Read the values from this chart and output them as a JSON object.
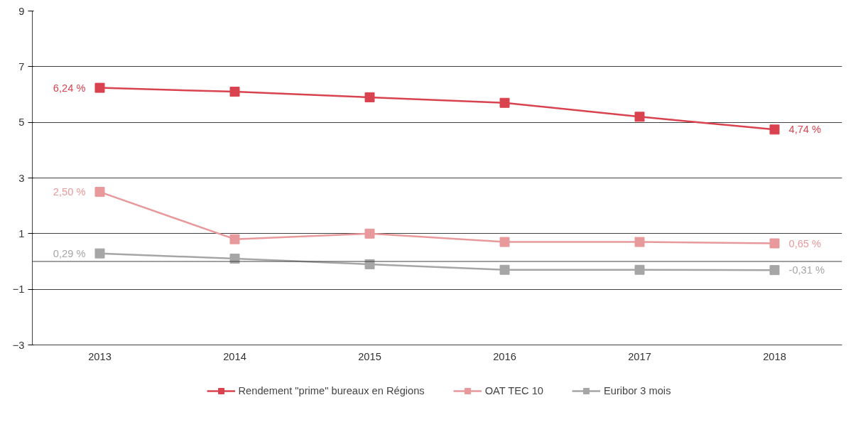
{
  "chart_data": {
    "type": "line",
    "categories": [
      "2013",
      "2014",
      "2015",
      "2016",
      "2017",
      "2018"
    ],
    "ylim": [
      -3,
      9
    ],
    "yticks": [
      9,
      7,
      5,
      3,
      1,
      -1,
      -3
    ],
    "grid": "y",
    "legend": "bottom",
    "marker": "square",
    "line_style": "solid",
    "ref_lines": [
      {
        "axis": "y",
        "value": 0,
        "label": null,
        "color": "#404040"
      }
    ],
    "series": [
      {
        "name": "Rendement \"prime\" bureaux en Régions",
        "color": "#d9434f",
        "values": [
          6.24,
          6.1,
          5.9,
          5.7,
          5.2,
          4.74
        ],
        "value_labels": [
          "6,24 %",
          null,
          null,
          null,
          null,
          "4,74 %"
        ]
      },
      {
        "name": "OAT TEC 10",
        "color": "#e8999b",
        "values": [
          2.5,
          0.8,
          1.0,
          0.7,
          0.7,
          0.65
        ],
        "value_labels": [
          "2,50 %",
          null,
          null,
          null,
          null,
          "0,65 %"
        ]
      },
      {
        "name": "Euribor 3 mois",
        "color": "#a6a6a6",
        "values": [
          0.29,
          0.1,
          -0.1,
          -0.3,
          -0.3,
          -0.31
        ],
        "value_labels": [
          "0,29 %",
          null,
          null,
          null,
          null,
          "-0,31 %"
        ]
      }
    ]
  }
}
